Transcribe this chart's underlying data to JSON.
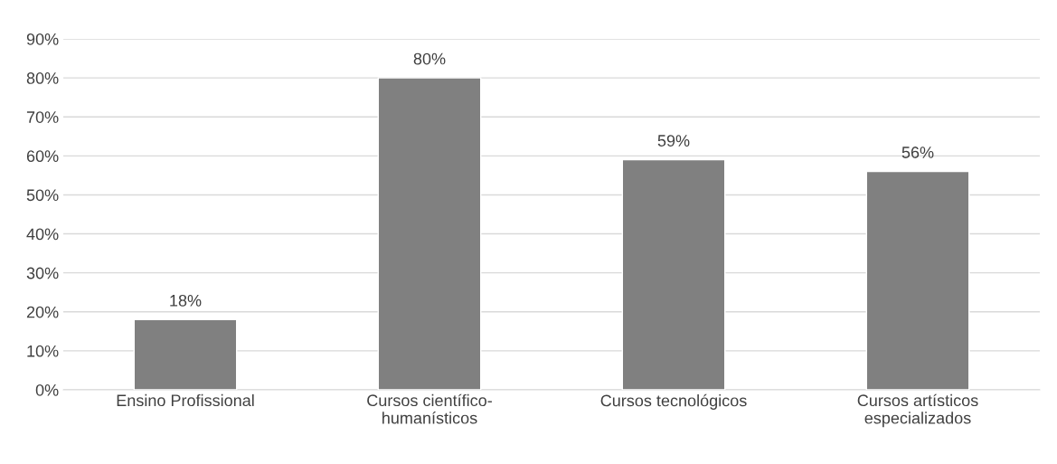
{
  "chart_data": {
    "type": "bar",
    "categories": [
      "Ensino Profissional",
      "Cursos científico-\nhumanísticos",
      "Cursos tecnológicos",
      "Cursos artísticos\nespecializados"
    ],
    "values": [
      18,
      80,
      59,
      56
    ],
    "value_labels": [
      "18%",
      "80%",
      "59%",
      "56%"
    ],
    "color": "#808080",
    "ylim": [
      0,
      90
    ],
    "yticks": [
      {
        "value": 0,
        "label": "0%"
      },
      {
        "value": 10,
        "label": "10%"
      },
      {
        "value": 20,
        "label": "20%"
      },
      {
        "value": 30,
        "label": "30%"
      },
      {
        "value": 40,
        "label": "40%"
      },
      {
        "value": 50,
        "label": "50%"
      },
      {
        "value": 60,
        "label": "60%"
      },
      {
        "value": 70,
        "label": "70%"
      },
      {
        "value": 80,
        "label": "80%"
      },
      {
        "value": 90,
        "label": "90%"
      }
    ],
    "grid": "y",
    "legend": false
  }
}
